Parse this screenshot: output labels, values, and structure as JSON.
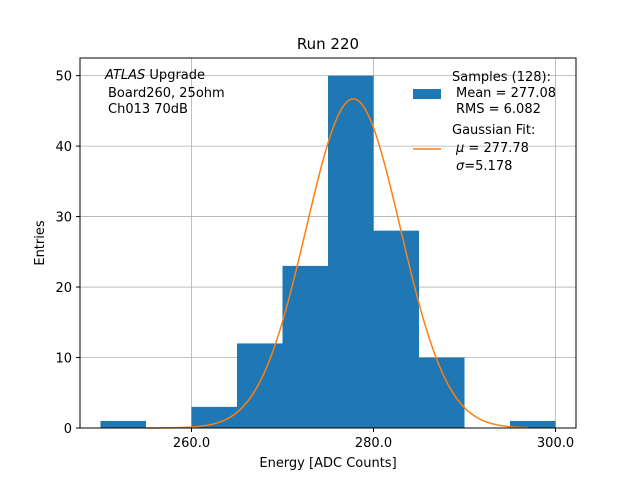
{
  "chart_data": {
    "type": "bar",
    "title": "Run 220",
    "xlabel": "Energy [ADC Counts]",
    "ylabel": "Entries",
    "xlim": [
      247.75,
      302.25
    ],
    "ylim": [
      0,
      52.5
    ],
    "xticks": [
      260,
      280,
      300
    ],
    "xtick_labels": [
      "260.0",
      "280.0",
      "300.0"
    ],
    "yticks": [
      0,
      10,
      20,
      30,
      40,
      50
    ],
    "ytick_labels": [
      "0",
      "10",
      "20",
      "30",
      "40",
      "50"
    ],
    "grid": true,
    "bin_edges": [
      250,
      255,
      260,
      265,
      270,
      275,
      280,
      285,
      290,
      295,
      300
    ],
    "values": [
      1,
      0,
      3,
      12,
      23,
      50,
      28,
      10,
      0,
      1
    ],
    "bar_color": "#1f77b4",
    "fit": {
      "name": "Gaussian Fit",
      "mu": 277.78,
      "sigma": 5.178,
      "amplitude": 46.7,
      "x_range": [
        255,
        297
      ],
      "color": "#ff7f0e"
    },
    "annotation": {
      "lines": [
        "Upgrade",
        "Board260, 25ohm",
        "Ch013 70dB"
      ],
      "italic_prefix": "ATLAS",
      "position": "top-left"
    },
    "legend": {
      "position": "top-right",
      "samples_lines": [
        "Samples (128):",
        "Mean = 277.08",
        "RMS = 6.082"
      ],
      "fit_lines": [
        "Gaussian Fit:",
        "= 277.78",
        "=5.178"
      ],
      "fit_symbols": [
        "μ",
        "σ"
      ]
    }
  }
}
